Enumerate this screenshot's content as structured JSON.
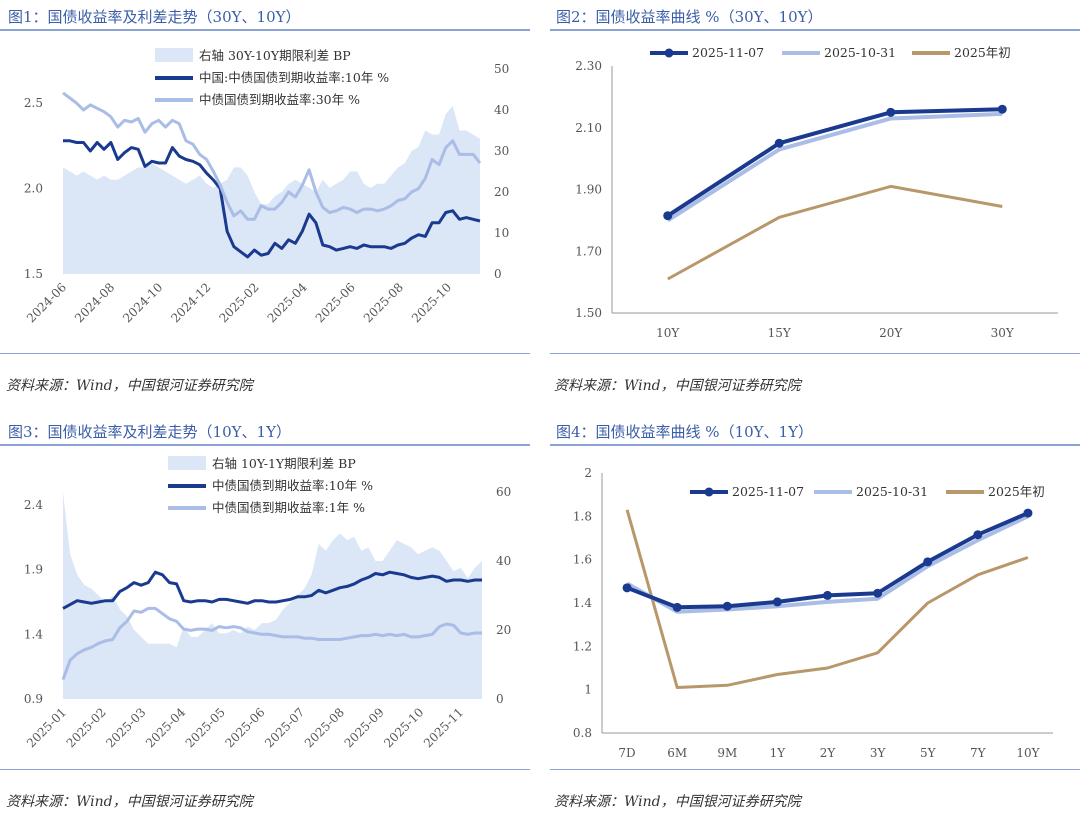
{
  "panels": [
    {
      "title": "图1：国债收益率及利差走势（30Y、10Y）",
      "source": "资料来源：Wind，中国银河证券研究院"
    },
    {
      "title": "图2：国债收益率曲线 %（30Y、10Y）",
      "source": "资料来源：Wind，中国银河证券研究院"
    },
    {
      "title": "图3：国债收益率及利差走势（10Y、1Y）",
      "source": "资料来源：Wind，中国银河证券研究院"
    },
    {
      "title": "图4：国债收益率曲线 %（10Y、1Y）",
      "source": "资料来源：Wind，中国银河证券研究院"
    }
  ],
  "colors": {
    "dark": "#1a3a8f",
    "light": "#a9bde6",
    "area": "#dbe6f6",
    "tan": "#b8976a"
  },
  "chart_data": [
    {
      "type": "line",
      "title": "图1：国债收益率及利差走势（30Y、10Y）",
      "yticks_left": [
        "1.5",
        "2.0",
        "2.5"
      ],
      "ylim_left": [
        1.5,
        2.7
      ],
      "yticks_right": [
        "0",
        "10",
        "20",
        "30",
        "40",
        "50"
      ],
      "ylim_right": [
        0,
        50
      ],
      "xticks": [
        "2024-06",
        "2024-08",
        "2024-10",
        "2024-12",
        "2025-02",
        "2025-04",
        "2025-06",
        "2025-08",
        "2025-10"
      ],
      "legend": [
        "右轴 30Y-10Y期限利差 BP",
        "中国:中债国债到期收益率:10年 %",
        "中债国债到期收益率:30年 %"
      ],
      "series": [
        {
          "name": "右轴 30Y-10Y期限利差 BP",
          "axis": "right",
          "kind": "area",
          "values": [
            26,
            25,
            24,
            25,
            24,
            23,
            24,
            23,
            23,
            24,
            25,
            26,
            26,
            27,
            26,
            25,
            24,
            23,
            22,
            23,
            24,
            22,
            21,
            22,
            23,
            26,
            26,
            24,
            20,
            17,
            17,
            19,
            20,
            22,
            23,
            22,
            21,
            20,
            23,
            21,
            22,
            23,
            25,
            25,
            22,
            21,
            22,
            22,
            24,
            26,
            27,
            30,
            31,
            35,
            34,
            34,
            39,
            41,
            35,
            35,
            34,
            33
          ]
        },
        {
          "name": "中国:中债国债到期收益率:10年 %",
          "axis": "left",
          "kind": "line",
          "values": [
            2.28,
            2.28,
            2.27,
            2.27,
            2.22,
            2.27,
            2.23,
            2.27,
            2.17,
            2.21,
            2.24,
            2.23,
            2.13,
            2.16,
            2.15,
            2.15,
            2.24,
            2.19,
            2.17,
            2.16,
            2.14,
            2.09,
            2.05,
            2.0,
            1.75,
            1.66,
            1.63,
            1.6,
            1.64,
            1.61,
            1.62,
            1.68,
            1.65,
            1.7,
            1.68,
            1.75,
            1.85,
            1.8,
            1.67,
            1.66,
            1.64,
            1.65,
            1.66,
            1.65,
            1.67,
            1.66,
            1.66,
            1.66,
            1.65,
            1.67,
            1.68,
            1.71,
            1.73,
            1.72,
            1.8,
            1.8,
            1.86,
            1.87,
            1.82,
            1.83,
            1.82,
            1.81
          ]
        },
        {
          "name": "中债国债到期收益率:30年 %",
          "axis": "left",
          "kind": "line",
          "values": [
            2.56,
            2.53,
            2.5,
            2.46,
            2.49,
            2.47,
            2.45,
            2.42,
            2.36,
            2.4,
            2.39,
            2.41,
            2.33,
            2.38,
            2.4,
            2.36,
            2.4,
            2.38,
            2.28,
            2.26,
            2.2,
            2.17,
            2.1,
            2.02,
            1.92,
            1.84,
            1.87,
            1.82,
            1.82,
            1.9,
            1.88,
            1.88,
            1.92,
            1.98,
            1.95,
            2.02,
            2.11,
            1.98,
            1.89,
            1.86,
            1.87,
            1.89,
            1.88,
            1.86,
            1.88,
            1.88,
            1.87,
            1.88,
            1.9,
            1.93,
            1.94,
            1.98,
            2.0,
            2.06,
            2.17,
            2.14,
            2.24,
            2.28,
            2.2,
            2.2,
            2.2,
            2.15
          ]
        }
      ]
    },
    {
      "type": "line",
      "title": "图2：国债收益率曲线 %（30Y、10Y）",
      "categories": [
        "10Y",
        "15Y",
        "20Y",
        "30Y"
      ],
      "yticks": [
        "1.50",
        "1.70",
        "1.90",
        "2.10",
        "2.30"
      ],
      "ylim": [
        1.5,
        2.3
      ],
      "series": [
        {
          "name": "2025-11-07",
          "values": [
            1.815,
            2.05,
            2.15,
            2.16
          ]
        },
        {
          "name": "2025-10-31",
          "values": [
            1.8,
            2.03,
            2.13,
            2.145
          ]
        },
        {
          "name": "2025年初",
          "values": [
            1.61,
            1.81,
            1.91,
            1.845
          ]
        }
      ]
    },
    {
      "type": "line",
      "title": "图3：国债收益率及利差走势（10Y、1Y）",
      "yticks_left": [
        "0.9",
        "1.4",
        "1.9",
        "2.4"
      ],
      "ylim_left": [
        0.9,
        2.5
      ],
      "yticks_right": [
        "0",
        "20",
        "40",
        "60"
      ],
      "ylim_right": [
        0,
        60
      ],
      "xticks": [
        "2025-01",
        "2025-02",
        "2025-03",
        "2025-04",
        "2025-05",
        "2025-06",
        "2025-07",
        "2025-08",
        "2025-09",
        "2025-10",
        "2025-11"
      ],
      "legend": [
        "右轴 10Y-1Y期限利差 BP",
        "中债国债到期收益率:10年 %",
        "中债国债到期收益率:1年 %"
      ],
      "series": [
        {
          "name": "右轴 10Y-1Y期限利差 BP",
          "axis": "right",
          "kind": "area",
          "values": [
            60,
            42,
            36,
            33,
            32,
            30,
            28,
            30,
            26,
            24,
            20,
            18,
            16,
            16,
            16,
            16,
            15,
            21,
            18,
            18,
            20,
            22,
            19,
            19,
            20,
            19,
            21,
            20,
            22,
            22,
            23,
            26,
            28,
            30,
            32,
            36,
            45,
            43,
            46,
            48,
            46,
            47,
            43,
            44,
            40,
            40,
            43,
            46,
            45,
            44,
            42,
            43,
            44,
            43,
            40,
            37,
            38,
            35,
            38,
            40
          ]
        },
        {
          "name": "中债国债到期收益率:10年 %",
          "axis": "left",
          "kind": "line",
          "values": [
            1.6,
            1.63,
            1.66,
            1.65,
            1.64,
            1.65,
            1.66,
            1.66,
            1.73,
            1.76,
            1.8,
            1.78,
            1.8,
            1.88,
            1.86,
            1.8,
            1.79,
            1.66,
            1.65,
            1.66,
            1.66,
            1.65,
            1.67,
            1.67,
            1.66,
            1.65,
            1.64,
            1.66,
            1.66,
            1.65,
            1.65,
            1.66,
            1.67,
            1.69,
            1.69,
            1.7,
            1.74,
            1.72,
            1.74,
            1.76,
            1.77,
            1.79,
            1.82,
            1.84,
            1.87,
            1.86,
            1.88,
            1.87,
            1.86,
            1.84,
            1.83,
            1.84,
            1.85,
            1.84,
            1.81,
            1.82,
            1.82,
            1.81,
            1.82,
            1.82
          ]
        },
        {
          "name": "中债国债到期收益率:1年 %",
          "axis": "left",
          "kind": "line",
          "values": [
            1.05,
            1.2,
            1.25,
            1.28,
            1.3,
            1.33,
            1.35,
            1.36,
            1.45,
            1.5,
            1.58,
            1.57,
            1.6,
            1.6,
            1.56,
            1.52,
            1.5,
            1.44,
            1.43,
            1.44,
            1.44,
            1.43,
            1.46,
            1.45,
            1.46,
            1.45,
            1.42,
            1.41,
            1.4,
            1.4,
            1.39,
            1.38,
            1.38,
            1.38,
            1.37,
            1.37,
            1.36,
            1.36,
            1.36,
            1.36,
            1.37,
            1.38,
            1.39,
            1.39,
            1.4,
            1.39,
            1.4,
            1.39,
            1.4,
            1.38,
            1.38,
            1.39,
            1.4,
            1.46,
            1.48,
            1.47,
            1.41,
            1.4,
            1.41,
            1.41
          ]
        }
      ]
    },
    {
      "type": "line",
      "title": "图4：国债收益率曲线 %（10Y、1Y）",
      "categories": [
        "7D",
        "6M",
        "9M",
        "1Y",
        "2Y",
        "3Y",
        "5Y",
        "7Y",
        "10Y"
      ],
      "yticks": [
        "0.8",
        "1",
        "1.2",
        "1.4",
        "1.6",
        "1.8",
        "2"
      ],
      "ylim": [
        0.8,
        2.0
      ],
      "series": [
        {
          "name": "2025-11-07",
          "values": [
            1.47,
            1.38,
            1.385,
            1.405,
            1.435,
            1.445,
            1.59,
            1.715,
            1.815
          ]
        },
        {
          "name": "2025-10-31",
          "values": [
            1.49,
            1.36,
            1.37,
            1.385,
            1.405,
            1.42,
            1.57,
            1.69,
            1.8
          ]
        },
        {
          "name": "2025年初",
          "values": [
            1.83,
            1.01,
            1.02,
            1.07,
            1.1,
            1.17,
            1.4,
            1.53,
            1.61
          ]
        }
      ]
    }
  ]
}
